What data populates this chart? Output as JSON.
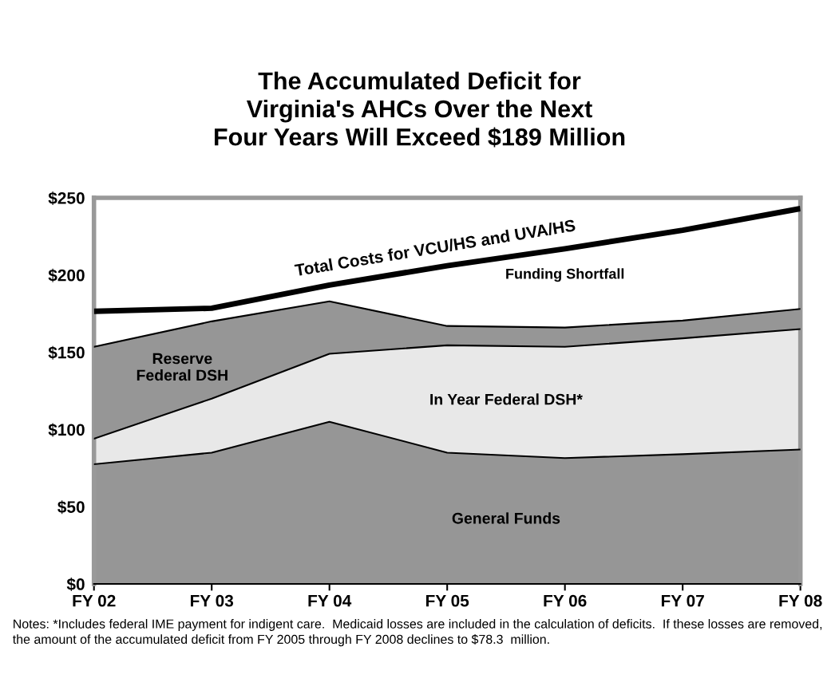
{
  "chart_data": {
    "type": "area",
    "stacked": true,
    "title": "The Accumulated Deficit for\nVirginia's AHCs Over the Next\nFour Years Will Exceed $189 Million",
    "categories": [
      "FY 02",
      "FY 03",
      "FY 04",
      "FY 05",
      "FY 06",
      "FY 07",
      "FY 08"
    ],
    "series": [
      {
        "name": "General Funds",
        "color": "#969696",
        "values": [
          77.5,
          85,
          105,
          85,
          81.5,
          84,
          87
        ]
      },
      {
        "name": "In Year Federal DSH*",
        "color": "#e8e8e8",
        "values": [
          16.5,
          35,
          44,
          69.5,
          72,
          75,
          78
        ]
      },
      {
        "name": "Reserve Federal DSH",
        "color": "#969696",
        "values": [
          59.5,
          50,
          34,
          12.5,
          12.5,
          11.5,
          13
        ]
      },
      {
        "name": "Total Costs for VCU/HS and UVA/HS",
        "type": "line",
        "color": "#000000",
        "values": [
          176.5,
          178.5,
          193.5,
          206,
          217,
          229,
          243
        ]
      }
    ],
    "ylim": [
      0,
      250
    ],
    "yticks": [
      {
        "value": 0,
        "label": "$0"
      },
      {
        "value": 50,
        "label": "$50"
      },
      {
        "value": 100,
        "label": "$100"
      },
      {
        "value": 150,
        "label": "$150"
      },
      {
        "value": 200,
        "label": "$200"
      },
      {
        "value": 250,
        "label": "$250"
      }
    ],
    "grid": false,
    "legend": false,
    "annotations": [
      "Funding Shortfall",
      "Notes: *Includes federal IME payment for indigent care.  Medicaid losses are included in the calculation of deficits.  If these losses are removed, the amount of the accumulated deficit from FY 2005 through FY 2008 declines to $78.3  million."
    ]
  }
}
